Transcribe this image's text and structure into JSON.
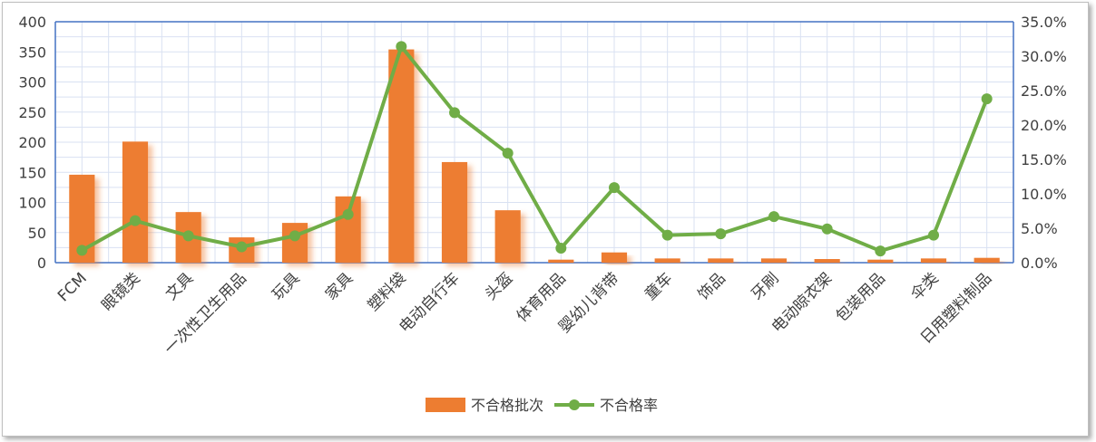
{
  "chart_data": {
    "type": "bar",
    "categories": [
      "FCM",
      "眼镜类",
      "文具",
      "一次性卫生用品",
      "玩具",
      "家具",
      "塑料袋",
      "电动自行车",
      "头盔",
      "体育用品",
      "婴幼儿背带",
      "童车",
      "饰品",
      "牙刷",
      "电动晾衣架",
      "包装用品",
      "伞类",
      "日用塑料制品"
    ],
    "series": [
      {
        "name": "不合格批次",
        "type": "bar",
        "axis": "left",
        "values": [
          146,
          201,
          84,
          42,
          66,
          110,
          354,
          167,
          87,
          5,
          17,
          7,
          7,
          7,
          6,
          5,
          7,
          8
        ]
      },
      {
        "name": "不合格率",
        "type": "line",
        "axis": "right",
        "values": [
          1.8,
          6.1,
          3.9,
          2.3,
          3.9,
          7.0,
          31.4,
          21.8,
          15.9,
          2.1,
          10.9,
          4.0,
          4.2,
          6.7,
          4.9,
          1.7,
          4.0,
          23.8
        ]
      }
    ],
    "y_left": {
      "min": 0,
      "max": 400,
      "ticks": [
        "0",
        "50",
        "100",
        "150",
        "200",
        "250",
        "300",
        "350",
        "400"
      ]
    },
    "y_right": {
      "min": 0,
      "max": 35,
      "ticks": [
        "0.0%",
        "5.0%",
        "10.0%",
        "15.0%",
        "20.0%",
        "25.0%",
        "30.0%",
        "35.0%"
      ]
    },
    "grid": true,
    "legend": "bottom",
    "colors": {
      "bar": "#ED7D31",
      "line": "#70AD47",
      "grid": "#D9E1F2",
      "axis": "#4472C4"
    }
  }
}
